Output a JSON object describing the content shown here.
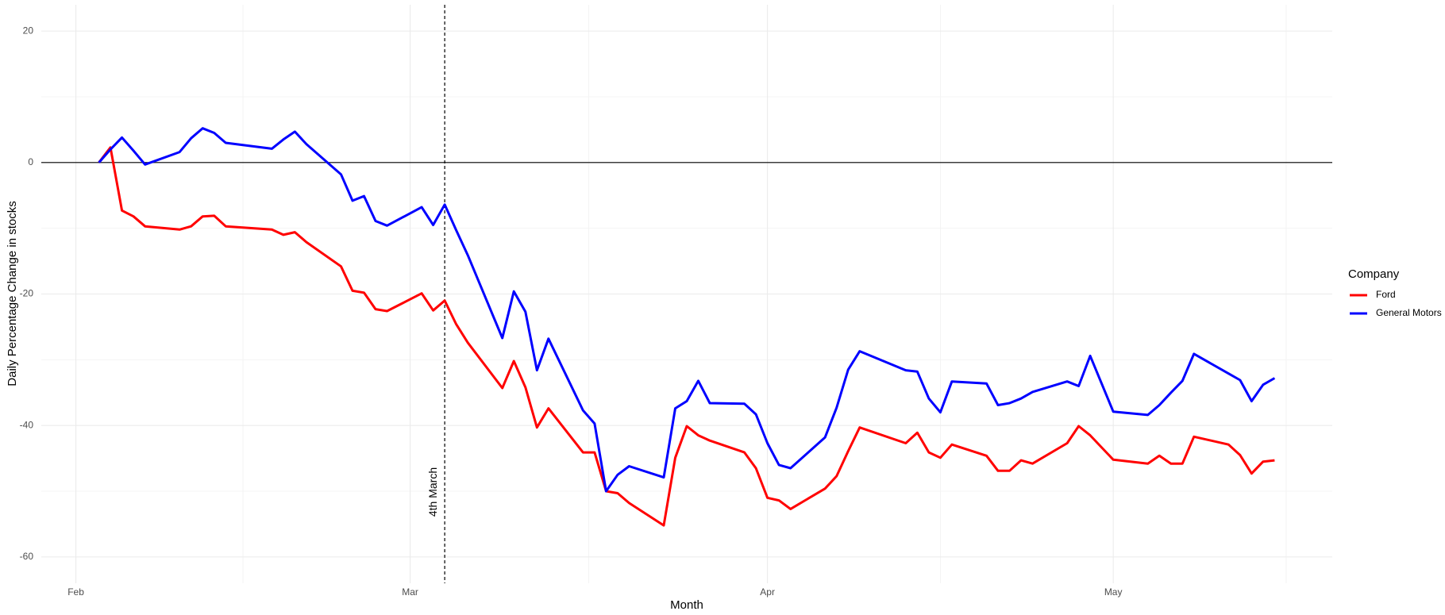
{
  "chart_data": {
    "type": "line",
    "x_label": "Month",
    "y_label": "Daily Percentage Change in stocks",
    "legend_title": "Company",
    "legend_position": "right",
    "grid": true,
    "xlim": [
      29,
      141
    ],
    "ylim": [
      -64,
      24
    ],
    "xticks": [
      {
        "value": 32,
        "label": "Feb"
      },
      {
        "value": 61,
        "label": "Mar"
      },
      {
        "value": 92,
        "label": "Apr"
      },
      {
        "value": 122,
        "label": "May"
      }
    ],
    "xminorticks": [
      46.5,
      76.5,
      107,
      137
    ],
    "yticks": [
      20,
      0,
      -20,
      -40,
      -60
    ],
    "yminorticks": [
      10,
      -10,
      -30,
      -50
    ],
    "hline": 0,
    "annotation": {
      "text": "4th March",
      "x": 64
    },
    "x": [
      34,
      35,
      36,
      37,
      38,
      41,
      42,
      43,
      44,
      45,
      49,
      50,
      51,
      52,
      55,
      56,
      57,
      58,
      59,
      62,
      63,
      64,
      65,
      66,
      69,
      70,
      71,
      72,
      73,
      76,
      77,
      78,
      79,
      80,
      83,
      84,
      85,
      86,
      87,
      90,
      91,
      92,
      93,
      94,
      97,
      98,
      99,
      100,
      104,
      105,
      106,
      107,
      108,
      111,
      112,
      113,
      114,
      115,
      118,
      119,
      120,
      122,
      125,
      126,
      127,
      128,
      129,
      132,
      133,
      134,
      135,
      136
    ],
    "series": [
      {
        "name": "Ford",
        "color": "#ff0000",
        "values": [
          0,
          2.3,
          -7.3,
          -8.2,
          -9.7,
          -10.2,
          -9.7,
          -8.2,
          -8.1,
          -9.7,
          -10.2,
          -11.0,
          -10.6,
          -12.1,
          -15.8,
          -19.5,
          -19.8,
          -22.3,
          -22.6,
          -19.9,
          -22.5,
          -21.0,
          -24.6,
          -27.4,
          -34.3,
          -30.2,
          -34.2,
          -40.3,
          -37.4,
          -44.1,
          -44.1,
          -50.0,
          -50.3,
          -51.8,
          -55.2,
          -44.9,
          -40.1,
          -41.5,
          -42.3,
          -44.1,
          -46.5,
          -51.0,
          -51.4,
          -52.7,
          -49.6,
          -47.7,
          -43.9,
          -40.3,
          -42.7,
          -41.1,
          -44.1,
          -44.9,
          -42.9,
          -44.6,
          -46.9,
          -46.9,
          -45.3,
          -45.8,
          -42.7,
          -40.1,
          -41.5,
          -45.2,
          -45.8,
          -44.6,
          -45.8,
          -45.8,
          -41.7,
          -42.9,
          -44.5,
          -47.3,
          -45.5,
          -45.3
        ]
      },
      {
        "name": "General Motors",
        "color": "#0000ff",
        "values": [
          0,
          2.0,
          3.8,
          1.8,
          -0.3,
          1.6,
          3.7,
          5.2,
          4.5,
          3.0,
          2.1,
          3.5,
          4.7,
          2.8,
          -1.8,
          -5.8,
          -5.1,
          -8.9,
          -9.6,
          -6.8,
          -9.5,
          -6.4,
          -10.3,
          -14.1,
          -26.7,
          -19.6,
          -22.7,
          -31.6,
          -26.8,
          -37.7,
          -39.7,
          -50.0,
          -47.5,
          -46.2,
          -47.9,
          -37.4,
          -36.3,
          -33.2,
          -36.6,
          -36.7,
          -38.3,
          -42.7,
          -46.0,
          -46.5,
          -41.8,
          -37.3,
          -31.5,
          -28.7,
          -31.6,
          -31.8,
          -35.9,
          -38.0,
          -33.3,
          -33.6,
          -36.9,
          -36.6,
          -35.9,
          -34.9,
          -33.3,
          -34.0,
          -29.4,
          -37.9,
          -38.4,
          -36.9,
          -35.0,
          -33.2,
          -29.1,
          -32.1,
          -33.1,
          -36.3,
          -33.8,
          -32.8
        ]
      }
    ]
  }
}
